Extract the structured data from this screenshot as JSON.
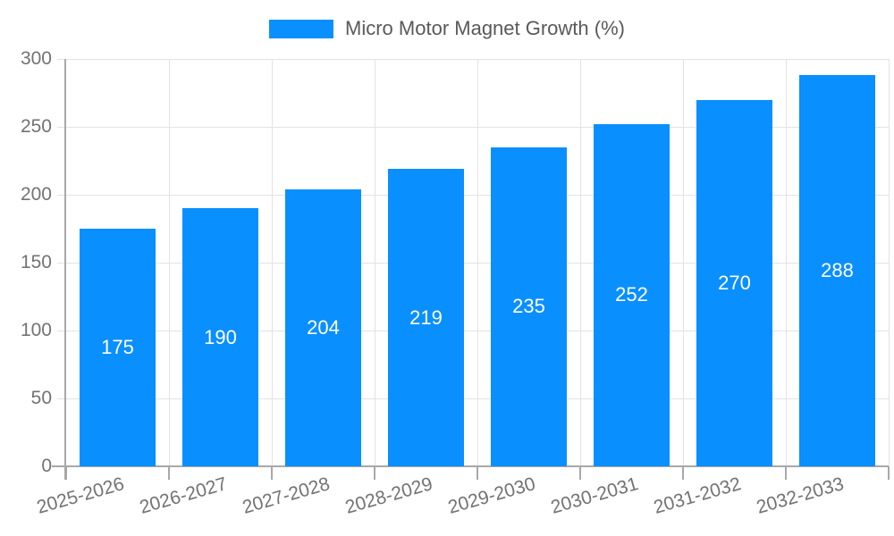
{
  "legend": {
    "label": "Micro Motor Magnet Growth (%)"
  },
  "chart_data": {
    "type": "bar",
    "title": "Micro Motor Magnet Growth (%)",
    "series_name": "Micro Motor Magnet Growth (%)",
    "categories": [
      "2025-2026",
      "2026-2027",
      "2027-2028",
      "2028-2029",
      "2029-2030",
      "2030-2031",
      "2031-2032",
      "2032-2033"
    ],
    "values": [
      175,
      190,
      204,
      219,
      235,
      252,
      270,
      288
    ],
    "xlabel": "",
    "ylabel": "",
    "ylim": [
      0,
      300
    ],
    "yticks": [
      0,
      50,
      100,
      150,
      200,
      250,
      300
    ],
    "grid": true,
    "legend_position": "top",
    "value_labels": "inside-middle",
    "colors": {
      "bar": "#0a8fff",
      "value_label": "#ffffff",
      "axis_label": "#737373",
      "legend_text": "#595959",
      "gridline": "#e3e3e3",
      "axis_line": "#a8a8a8"
    }
  }
}
